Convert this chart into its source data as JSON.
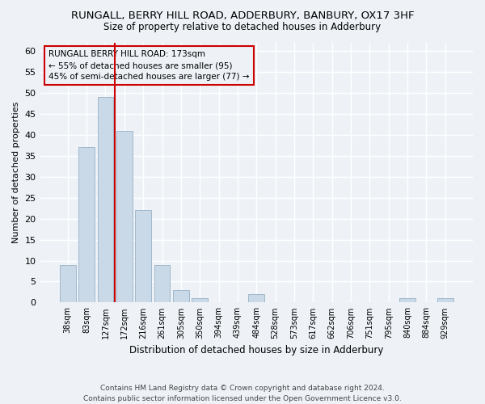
{
  "title": "RUNGALL, BERRY HILL ROAD, ADDERBURY, BANBURY, OX17 3HF",
  "subtitle": "Size of property relative to detached houses in Adderbury",
  "xlabel": "Distribution of detached houses by size in Adderbury",
  "ylabel": "Number of detached properties",
  "footnote1": "Contains HM Land Registry data © Crown copyright and database right 2024.",
  "footnote2": "Contains public sector information licensed under the Open Government Licence v3.0.",
  "bar_labels": [
    "38sqm",
    "83sqm",
    "127sqm",
    "172sqm",
    "216sqm",
    "261sqm",
    "305sqm",
    "350sqm",
    "394sqm",
    "439sqm",
    "484sqm",
    "528sqm",
    "573sqm",
    "617sqm",
    "662sqm",
    "706sqm",
    "751sqm",
    "795sqm",
    "840sqm",
    "884sqm",
    "929sqm"
  ],
  "bar_values": [
    9,
    37,
    49,
    41,
    22,
    9,
    3,
    1,
    0,
    0,
    2,
    0,
    0,
    0,
    0,
    0,
    0,
    0,
    1,
    0,
    1
  ],
  "bar_color": "#c9d9e8",
  "bar_edge_color": "#a0b8cc",
  "ylim": [
    0,
    62
  ],
  "yticks": [
    0,
    5,
    10,
    15,
    20,
    25,
    30,
    35,
    40,
    45,
    50,
    55,
    60
  ],
  "vline_bin": 3,
  "vline_color": "#cc0000",
  "annotation_title": "RUNGALL BERRY HILL ROAD: 173sqm",
  "annotation_line1": "← 55% of detached houses are smaller (95)",
  "annotation_line2": "45% of semi-detached houses are larger (77) →",
  "annotation_box_color": "#cc0000",
  "bg_color": "#eef2f7",
  "grid_color": "#ffffff"
}
